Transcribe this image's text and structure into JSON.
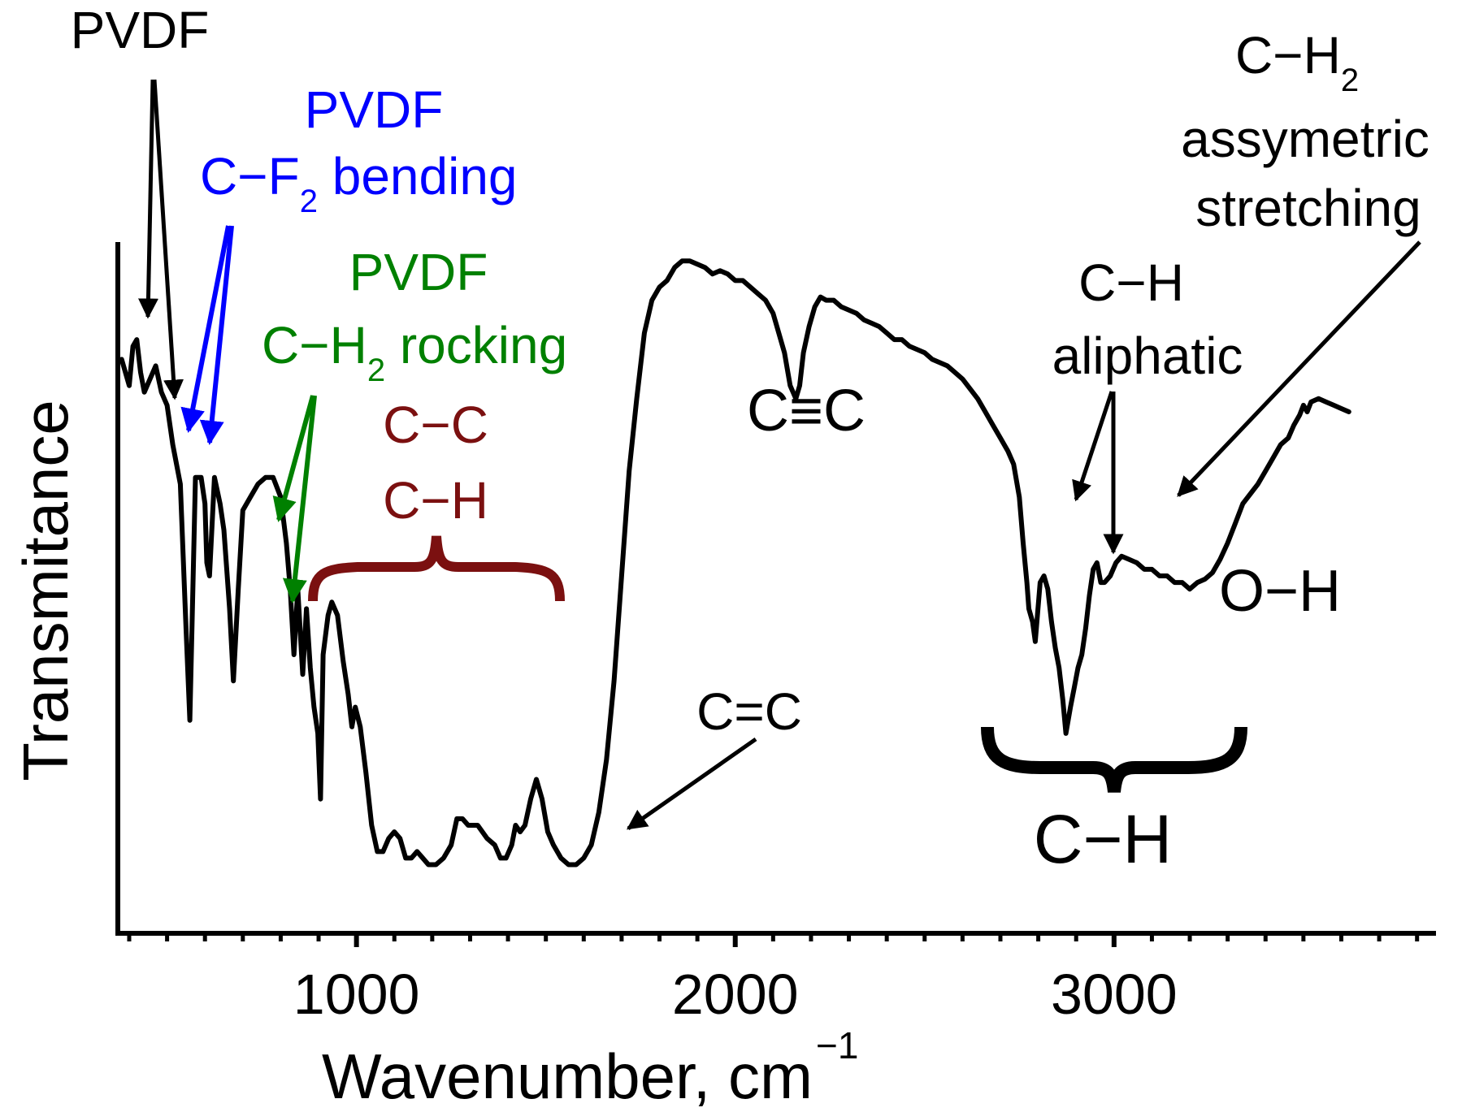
{
  "chart_data": {
    "type": "line",
    "title": "",
    "xlabel": "Wavenumber, cm",
    "xlabel_superscript": "−1",
    "ylabel": "Transmitance",
    "xlim": [
      370,
      3850
    ],
    "ylim": [
      0,
      100
    ],
    "x_ticks": [
      1000,
      2000,
      3000
    ],
    "x_tick_labels": [
      "1000",
      "2000",
      "3000"
    ],
    "grid": false,
    "series": [
      {
        "name": "",
        "color": "#000000",
        "points": [
          [
            380,
            83
          ],
          [
            400,
            79
          ],
          [
            410,
            85
          ],
          [
            420,
            86
          ],
          [
            430,
            81
          ],
          [
            440,
            78
          ],
          [
            455,
            80
          ],
          [
            470,
            82
          ],
          [
            485,
            78
          ],
          [
            500,
            76
          ],
          [
            515,
            70
          ],
          [
            535,
            64
          ],
          [
            550,
            42
          ],
          [
            560,
            28
          ],
          [
            575,
            65
          ],
          [
            590,
            65
          ],
          [
            600,
            61
          ],
          [
            605,
            52
          ],
          [
            612,
            50
          ],
          [
            625,
            65
          ],
          [
            640,
            61
          ],
          [
            650,
            57
          ],
          [
            665,
            45
          ],
          [
            675,
            34
          ],
          [
            688,
            48
          ],
          [
            700,
            60
          ],
          [
            720,
            62
          ],
          [
            740,
            64
          ],
          [
            760,
            65
          ],
          [
            780,
            65
          ],
          [
            800,
            62
          ],
          [
            815,
            55
          ],
          [
            825,
            48
          ],
          [
            835,
            38
          ],
          [
            845,
            48
          ],
          [
            858,
            35
          ],
          [
            868,
            45
          ],
          [
            878,
            36
          ],
          [
            888,
            30
          ],
          [
            898,
            26
          ],
          [
            905,
            16
          ],
          [
            912,
            38
          ],
          [
            925,
            44
          ],
          [
            935,
            46
          ],
          [
            950,
            44
          ],
          [
            965,
            37
          ],
          [
            978,
            32
          ],
          [
            988,
            27
          ],
          [
            997,
            30
          ],
          [
            1010,
            27
          ],
          [
            1025,
            20
          ],
          [
            1040,
            12
          ],
          [
            1055,
            8
          ],
          [
            1070,
            8
          ],
          [
            1085,
            10
          ],
          [
            1100,
            11
          ],
          [
            1115,
            10
          ],
          [
            1130,
            7
          ],
          [
            1145,
            7
          ],
          [
            1160,
            8
          ],
          [
            1175,
            7
          ],
          [
            1190,
            6
          ],
          [
            1210,
            6
          ],
          [
            1230,
            7
          ],
          [
            1250,
            9
          ],
          [
            1265,
            13
          ],
          [
            1280,
            13
          ],
          [
            1295,
            12
          ],
          [
            1320,
            12
          ],
          [
            1345,
            10
          ],
          [
            1365,
            9
          ],
          [
            1380,
            7
          ],
          [
            1395,
            7
          ],
          [
            1410,
            9
          ],
          [
            1420,
            12
          ],
          [
            1432,
            11
          ],
          [
            1445,
            12
          ],
          [
            1460,
            16
          ],
          [
            1475,
            19
          ],
          [
            1490,
            16
          ],
          [
            1505,
            11
          ],
          [
            1520,
            9
          ],
          [
            1540,
            7
          ],
          [
            1560,
            6
          ],
          [
            1580,
            6
          ],
          [
            1600,
            7
          ],
          [
            1620,
            9
          ],
          [
            1640,
            14
          ],
          [
            1660,
            22
          ],
          [
            1680,
            34
          ],
          [
            1700,
            50
          ],
          [
            1720,
            66
          ],
          [
            1740,
            77
          ],
          [
            1760,
            87
          ],
          [
            1780,
            92
          ],
          [
            1800,
            94
          ],
          [
            1820,
            95
          ],
          [
            1840,
            97
          ],
          [
            1860,
            98
          ],
          [
            1880,
            98
          ],
          [
            1900,
            97.5
          ],
          [
            1920,
            97
          ],
          [
            1940,
            96
          ],
          [
            1960,
            96.5
          ],
          [
            1980,
            96
          ],
          [
            2000,
            95
          ],
          [
            2020,
            95
          ],
          [
            2040,
            94
          ],
          [
            2060,
            93
          ],
          [
            2080,
            92
          ],
          [
            2100,
            90
          ],
          [
            2115,
            87
          ],
          [
            2130,
            84
          ],
          [
            2145,
            79
          ],
          [
            2160,
            77
          ],
          [
            2170,
            79
          ],
          [
            2180,
            84
          ],
          [
            2195,
            88
          ],
          [
            2210,
            91
          ],
          [
            2225,
            92.5
          ],
          [
            2240,
            92
          ],
          [
            2260,
            92
          ],
          [
            2280,
            91
          ],
          [
            2300,
            90.5
          ],
          [
            2320,
            90
          ],
          [
            2340,
            89
          ],
          [
            2360,
            88.5
          ],
          [
            2380,
            88
          ],
          [
            2400,
            87
          ],
          [
            2420,
            86
          ],
          [
            2440,
            86
          ],
          [
            2460,
            85
          ],
          [
            2480,
            84.5
          ],
          [
            2500,
            84
          ],
          [
            2520,
            83
          ],
          [
            2540,
            82.5
          ],
          [
            2560,
            82
          ],
          [
            2580,
            81
          ],
          [
            2600,
            80
          ],
          [
            2620,
            78.5
          ],
          [
            2640,
            77
          ],
          [
            2660,
            75
          ],
          [
            2680,
            73
          ],
          [
            2700,
            71
          ],
          [
            2720,
            69
          ],
          [
            2735,
            67
          ],
          [
            2750,
            62
          ],
          [
            2760,
            55
          ],
          [
            2770,
            49
          ],
          [
            2775,
            45
          ],
          [
            2785,
            43
          ],
          [
            2792,
            40
          ],
          [
            2805,
            49
          ],
          [
            2815,
            50
          ],
          [
            2825,
            48
          ],
          [
            2835,
            43
          ],
          [
            2845,
            39
          ],
          [
            2855,
            36
          ],
          [
            2865,
            31
          ],
          [
            2873,
            26
          ],
          [
            2885,
            30
          ],
          [
            2895,
            33
          ],
          [
            2905,
            36
          ],
          [
            2915,
            38
          ],
          [
            2925,
            42
          ],
          [
            2935,
            47
          ],
          [
            2945,
            51
          ],
          [
            2955,
            52
          ],
          [
            2965,
            49
          ],
          [
            2975,
            49
          ],
          [
            2990,
            50
          ],
          [
            3005,
            52
          ],
          [
            3020,
            53
          ],
          [
            3040,
            52.5
          ],
          [
            3060,
            52
          ],
          [
            3080,
            51
          ],
          [
            3100,
            51
          ],
          [
            3120,
            50
          ],
          [
            3140,
            50
          ],
          [
            3160,
            49
          ],
          [
            3180,
            49
          ],
          [
            3200,
            48
          ],
          [
            3220,
            49
          ],
          [
            3240,
            49.5
          ],
          [
            3260,
            50.5
          ],
          [
            3280,
            52.5
          ],
          [
            3300,
            55
          ],
          [
            3320,
            58
          ],
          [
            3340,
            61
          ],
          [
            3360,
            62.5
          ],
          [
            3380,
            64
          ],
          [
            3400,
            66
          ],
          [
            3420,
            68
          ],
          [
            3440,
            70
          ],
          [
            3460,
            71
          ],
          [
            3475,
            73
          ],
          [
            3490,
            74.5
          ],
          [
            3500,
            76
          ],
          [
            3510,
            75
          ],
          [
            3520,
            76.5
          ],
          [
            3540,
            77
          ],
          [
            3560,
            76.5
          ],
          [
            3580,
            76
          ],
          [
            3600,
            75.5
          ],
          [
            3620,
            75
          ]
        ]
      }
    ],
    "annotations": [
      {
        "id": "pvdf-1",
        "text": "PVDF",
        "color": "#000000"
      },
      {
        "id": "pvdf-cf2-name",
        "text": "PVDF",
        "color": "#0000ff"
      },
      {
        "id": "pvdf-cf2-bond",
        "text": "C−F",
        "sub": "2",
        "suffix": " bending",
        "color": "#0000ff"
      },
      {
        "id": "pvdf-ch2-name",
        "text": "PVDF",
        "color": "#008000"
      },
      {
        "id": "pvdf-ch2-bond",
        "text": "C−H",
        "sub": "2",
        "suffix": " rocking",
        "color": "#008000"
      },
      {
        "id": "cc-ch-1",
        "text": "C−C",
        "color": "#7b1010"
      },
      {
        "id": "cc-ch-2",
        "text": "C−H",
        "color": "#7b1010"
      },
      {
        "id": "c-triple-c",
        "text": "C≡C",
        "color": "#000000"
      },
      {
        "id": "c-double-c",
        "text": "C=C",
        "color": "#000000"
      },
      {
        "id": "ch2-bond",
        "text": "C−H",
        "sub": "2",
        "color": "#000000"
      },
      {
        "id": "ch2-assym",
        "text": "assymetric",
        "color": "#000000"
      },
      {
        "id": "ch2-stretch",
        "text": "stretching",
        "color": "#000000"
      },
      {
        "id": "ch-aliph-1",
        "text": "C−H",
        "color": "#000000"
      },
      {
        "id": "ch-aliph-2",
        "text": "aliphatic",
        "color": "#000000"
      },
      {
        "id": "oh",
        "text": "O−H",
        "color": "#000000"
      },
      {
        "id": "ch-bottom",
        "text": "C−H",
        "color": "#000000"
      }
    ]
  }
}
